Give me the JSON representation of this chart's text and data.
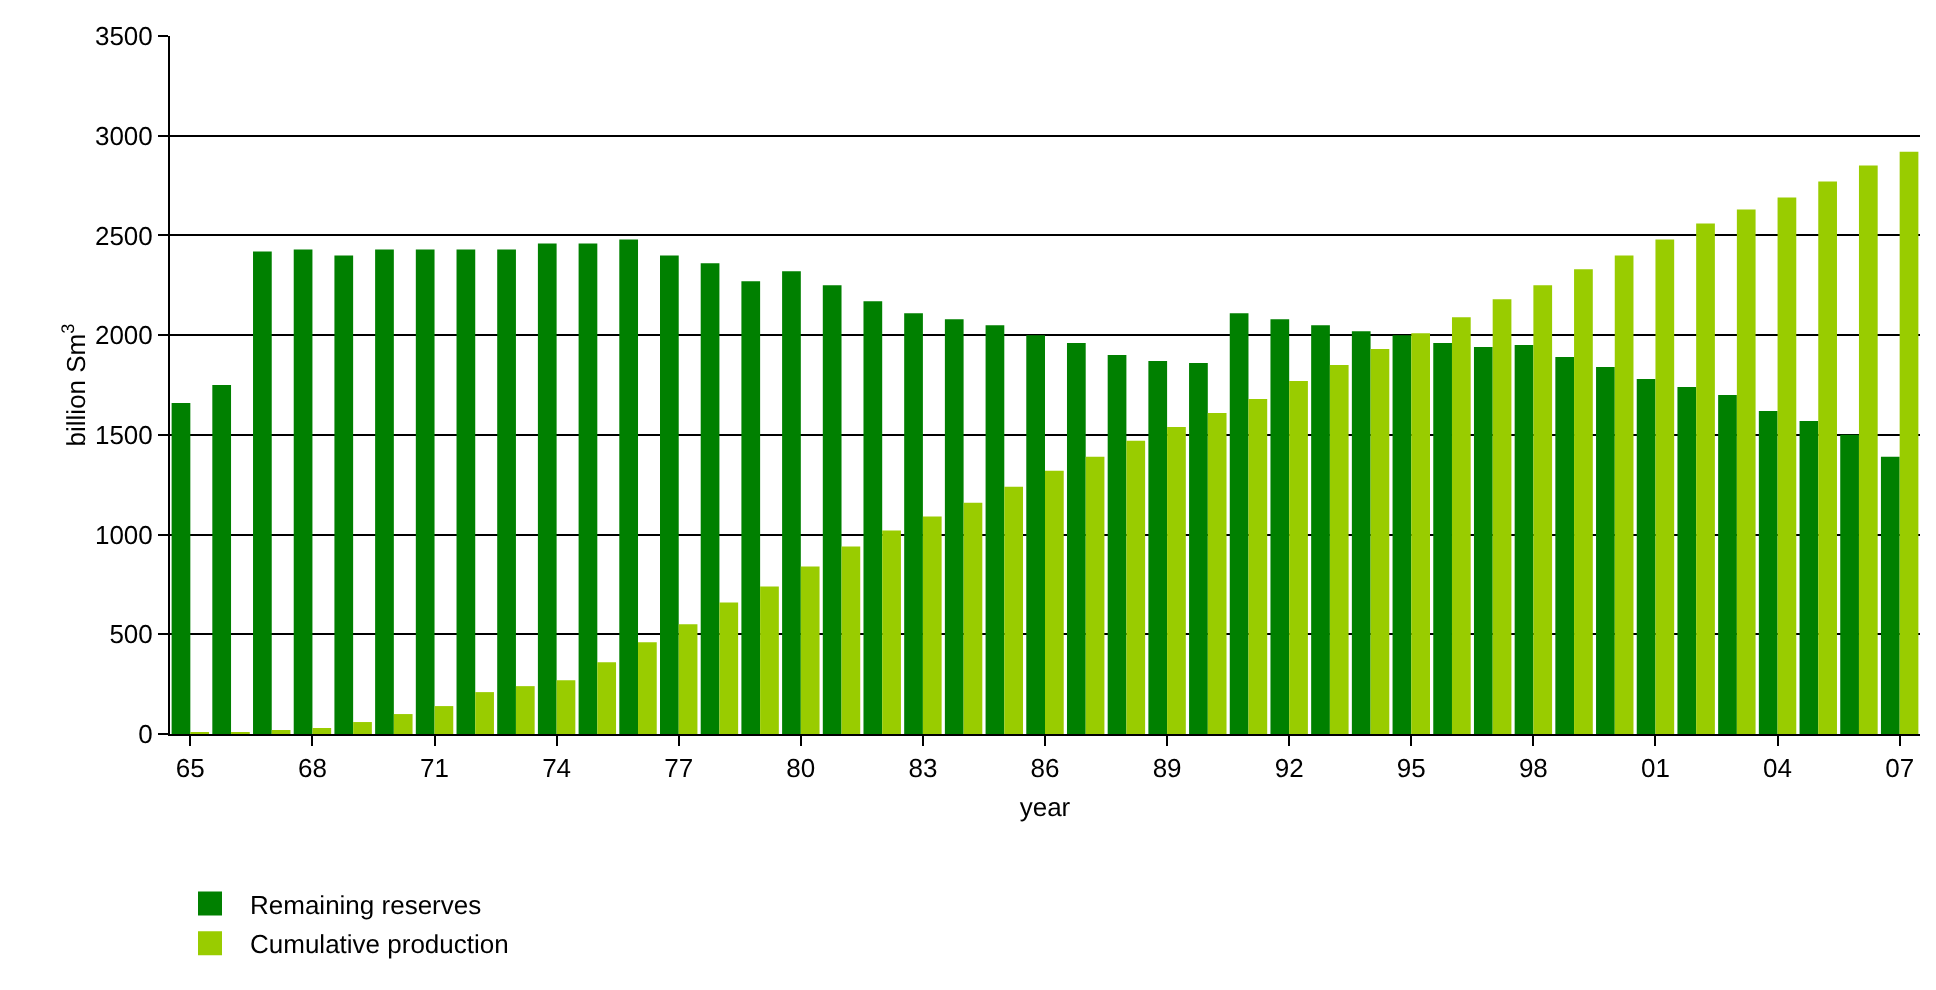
{
  "chart_data": {
    "type": "bar",
    "xlabel": "year",
    "ylabel": "billion Sm$^{3}$",
    "categories": [
      "65",
      null,
      null,
      "68",
      null,
      null,
      "71",
      null,
      null,
      "74",
      null,
      null,
      "77",
      null,
      null,
      "80",
      null,
      null,
      "83",
      null,
      null,
      "86",
      null,
      null,
      "89",
      null,
      null,
      "92",
      null,
      null,
      "95",
      null,
      null,
      "98",
      null,
      null,
      "01",
      null,
      null,
      "04",
      null,
      null,
      "07"
    ],
    "series": [
      {
        "name": "Remaining reserves",
        "color": "#008000",
        "values": [
          1660,
          1750,
          2420,
          2430,
          2400,
          2430,
          2430,
          2430,
          2430,
          2460,
          2460,
          2480,
          2400,
          2360,
          2270,
          2320,
          2250,
          2170,
          2110,
          2080,
          2050,
          2000,
          1960,
          1900,
          1870,
          1860,
          2110,
          2080,
          2050,
          2020,
          2000,
          1960,
          1940,
          1950,
          1890,
          1840,
          1780,
          1740,
          1700,
          1620,
          1570,
          1500,
          1390
        ]
      },
      {
        "name": "Cumulative production",
        "color": "#99cc00",
        "values": [
          5,
          10,
          20,
          30,
          60,
          100,
          140,
          210,
          240,
          270,
          360,
          460,
          550,
          660,
          740,
          840,
          940,
          1020,
          1090,
          1160,
          1240,
          1320,
          1390,
          1470,
          1540,
          1610,
          1680,
          1770,
          1850,
          1930,
          2010,
          2090,
          2180,
          2250,
          2330,
          2400,
          2480,
          2560,
          2630,
          2690,
          2770,
          2850,
          2920
        ]
      }
    ],
    "ylim": [
      0,
      3500
    ],
    "yticks": [
      0,
      500,
      1000,
      1500,
      2000,
      2500,
      3000,
      3500
    ],
    "grid": "y",
    "legend": "bottom left"
  }
}
